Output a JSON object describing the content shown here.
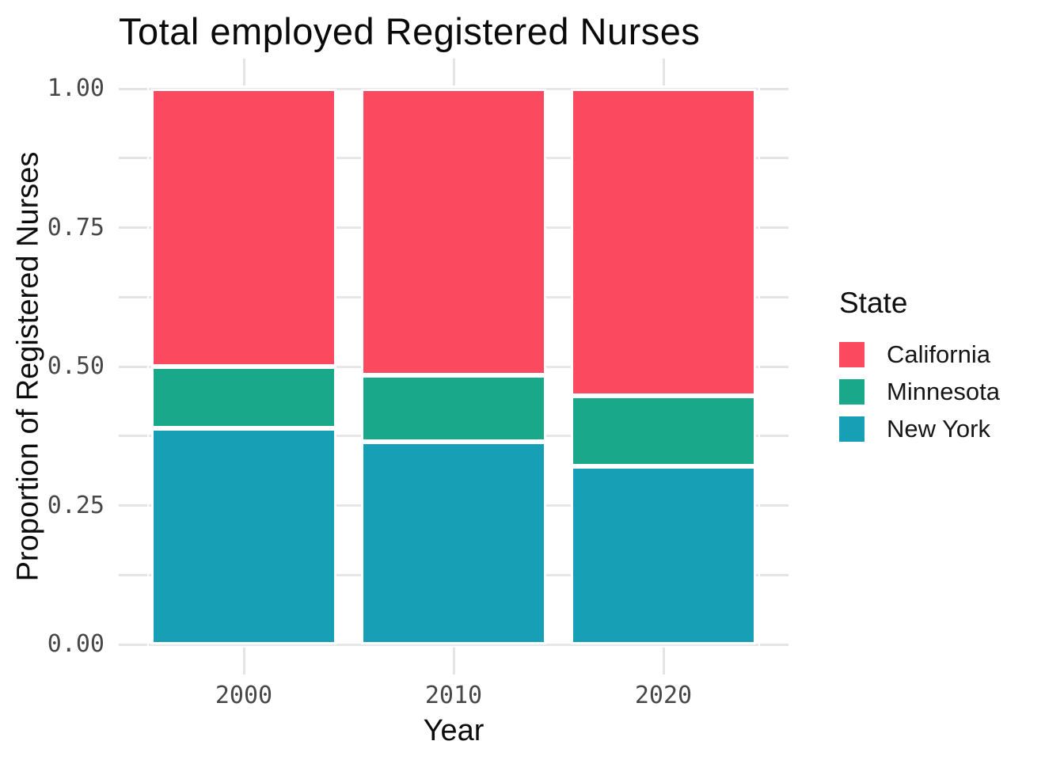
{
  "title": "Total employed Registered Nurses",
  "axes": {
    "y": {
      "label": "Proportion of Registered Nurses",
      "major_tick_labels": [
        "1.00",
        "0.75",
        "0.50",
        "0.25",
        "0.00"
      ],
      "major_tick_values": [
        1.0,
        0.75,
        0.5,
        0.25,
        0.0
      ]
    },
    "x": {
      "label": "Year",
      "tick_labels": [
        "2000",
        "2010",
        "2020"
      ]
    }
  },
  "legend": {
    "title": "State",
    "items": [
      {
        "label": "California",
        "color": "#FB4A5F"
      },
      {
        "label": "Minnesota",
        "color": "#1AA88A"
      },
      {
        "label": "New York",
        "color": "#169FB5"
      }
    ]
  },
  "colors": {
    "california": "#FB4A5F",
    "minnesota": "#1AA88A",
    "new_york": "#169FB5",
    "gridline": "#E7E7E7",
    "tick": "#E4E4E4",
    "tick_label": "#474747",
    "text": "#0A0A0A",
    "bar_stroke": "#FFFFFF"
  },
  "chart_data": {
    "type": "bar",
    "stacked": true,
    "normalized": true,
    "title": "Total employed Registered Nurses",
    "xlabel": "Year",
    "ylabel": "Proportion of Registered Nurses",
    "categories": [
      "2000",
      "2010",
      "2020"
    ],
    "series": [
      {
        "name": "California",
        "color": "#FB4A5F",
        "values": [
          0.5,
          0.516,
          0.552
        ]
      },
      {
        "name": "Minnesota",
        "color": "#1AA88A",
        "values": [
          0.111,
          0.12,
          0.127
        ]
      },
      {
        "name": "New York",
        "color": "#169FB5",
        "values": [
          0.389,
          0.364,
          0.321
        ]
      }
    ],
    "stack_order_bottom_to_top": [
      "New York",
      "Minnesota",
      "California"
    ],
    "ylim": [
      0,
      1
    ],
    "y_major_step": 0.25,
    "y_minor_step": 0.125,
    "grid": "horizontal-major-and-minor",
    "ticks_outside_all_four_sides": true,
    "legend_title": "State",
    "legend_position": "right",
    "bar_gap_fraction": 0.12,
    "slashed_zero_numerals": true
  }
}
